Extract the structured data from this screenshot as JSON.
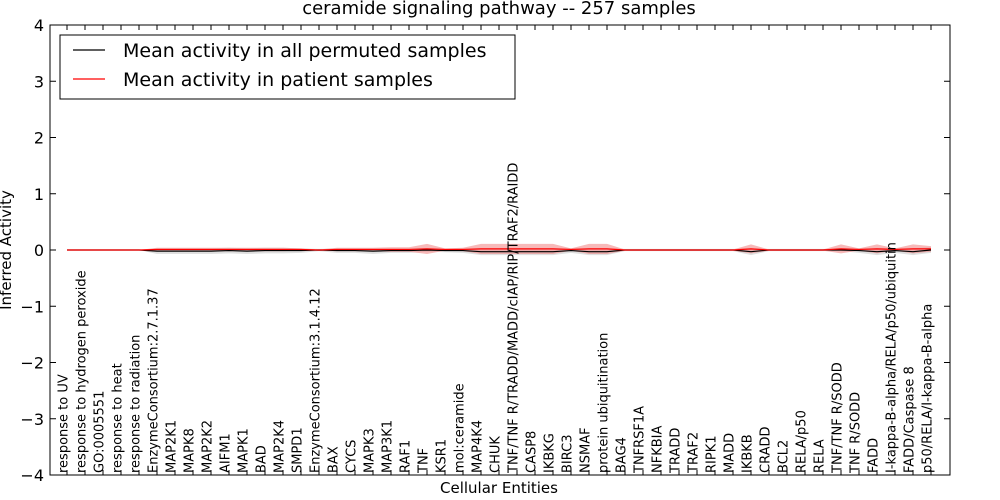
{
  "chart_data": {
    "type": "line",
    "title": "ceramide signaling pathway -- 257 samples",
    "xlabel": "Cellular Entities",
    "ylabel": "Inferred Activity",
    "ylim": [
      -4,
      4
    ],
    "yticks": [
      "−4",
      "−3",
      "−2",
      "−1",
      "0",
      "1",
      "2",
      "3",
      "4"
    ],
    "ytick_values": [
      -4,
      -3,
      -2,
      -1,
      0,
      1,
      2,
      3,
      4
    ],
    "legend_position": "top-left",
    "categories": [
      "response to UV",
      "response to hydrogen peroxide",
      "GO:0005551",
      "response to heat",
      "response to radiation",
      "EnzymeConsortium:2.7.1.37",
      "MAP2K1",
      "MAPK8",
      "MAP2K2",
      "AIFM1",
      "MAPK1",
      "BAD",
      "MAP2K4",
      "SMPD1",
      "EnzymeConsortium:3.1.4.12",
      "BAX",
      "CYCS",
      "MAPK3",
      "MAP3K1",
      "RAF1",
      "TNF",
      "KSR1",
      "mol:ceramide",
      "MAP4K4",
      "CHUK",
      "TNF/TNF R/TRADD/MADD/cIAP/RIP/TRAF2/RAIDD",
      "CASP8",
      "IKBKG",
      "BIRC3",
      "NSMAF",
      "protein ubiquitination",
      "BAG4",
      "TNFRSF1A",
      "NFKBIA",
      "TRADD",
      "TRAF2",
      "RIPK1",
      "MADD",
      "IKBKB",
      "CRADD",
      "BCL2",
      "RELA/p50",
      "RELA",
      "TNF/TNF R/SODD",
      "TNF R/SODD",
      "FADD",
      "I-kappa-B-alpha/RELA/p50/ubiquitin",
      "FADD/Caspase 8",
      "p50/RELA/I-kappa-B-alpha"
    ],
    "series": [
      {
        "name": "Mean activity in all permuted samples",
        "color": "#000000",
        "band_color": "#bfbfbf",
        "values": [
          0,
          0,
          0,
          0,
          0,
          -0.02,
          -0.02,
          -0.02,
          -0.02,
          -0.01,
          -0.02,
          -0.01,
          -0.01,
          -0.01,
          0,
          -0.01,
          -0.01,
          -0.02,
          -0.01,
          -0.01,
          0,
          -0.01,
          -0.01,
          -0.03,
          -0.03,
          -0.03,
          -0.03,
          -0.03,
          -0.01,
          -0.03,
          -0.03,
          0,
          0,
          0,
          0,
          0,
          0,
          0,
          -0.03,
          0,
          0,
          0,
          0,
          0,
          -0.01,
          -0.03,
          -0.01,
          -0.03,
          0
        ],
        "band": [
          0,
          0,
          0,
          0,
          0,
          0.05,
          0.05,
          0.05,
          0.05,
          0.05,
          0.05,
          0.05,
          0.05,
          0.04,
          0.02,
          0.04,
          0.04,
          0.05,
          0.04,
          0.04,
          0.03,
          0.03,
          0.04,
          0.06,
          0.06,
          0.06,
          0.06,
          0.06,
          0.04,
          0.06,
          0.06,
          0.02,
          0.02,
          0.02,
          0.02,
          0.02,
          0.02,
          0.02,
          0.06,
          0.02,
          0.02,
          0.02,
          0.02,
          0.02,
          0.04,
          0.06,
          0.04,
          0.06,
          0.05
        ]
      },
      {
        "name": "Mean activity in patient samples",
        "color": "#ff0000",
        "band_color": "#f08080",
        "values": [
          0,
          0,
          0,
          0,
          0,
          0.01,
          0.01,
          0.01,
          0.01,
          0.01,
          0.01,
          0.01,
          0.01,
          0.01,
          0,
          0.01,
          0.01,
          0.01,
          0.01,
          0.01,
          0.02,
          0.01,
          0.01,
          0.02,
          0.02,
          0.02,
          0.02,
          0.02,
          0.01,
          0.02,
          0.02,
          0,
          0,
          0,
          0,
          0,
          0,
          0,
          0.02,
          0,
          0,
          0,
          0,
          0.02,
          0.01,
          0.02,
          0.01,
          0.02,
          0.02
        ],
        "band": [
          0,
          0,
          0,
          0,
          0,
          0.03,
          0.03,
          0.03,
          0.03,
          0.03,
          0.03,
          0.03,
          0.03,
          0.02,
          0.01,
          0.03,
          0.03,
          0.03,
          0.04,
          0.04,
          0.09,
          0.02,
          0.03,
          0.09,
          0.09,
          0.09,
          0.09,
          0.09,
          0.02,
          0.09,
          0.09,
          0.01,
          0.01,
          0.01,
          0.01,
          0.01,
          0.01,
          0.01,
          0.08,
          0.01,
          0.01,
          0.01,
          0.01,
          0.08,
          0.02,
          0.08,
          0.02,
          0.08,
          0.05
        ]
      }
    ]
  }
}
